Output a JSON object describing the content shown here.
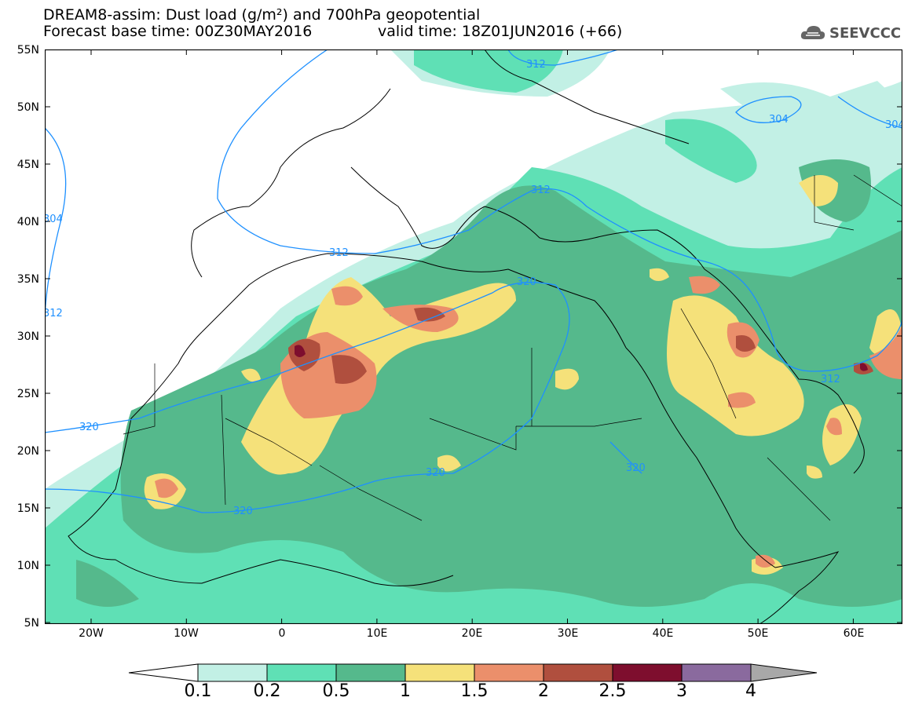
{
  "header": {
    "title_line1": "DREAM8-assim: Dust load (g/m²) and 700hPa geopotential",
    "title_line2": "Forecast base time: 00Z30MAY2016",
    "valid_time": "valid time: 18Z01JUN2016 (+66)"
  },
  "logo": {
    "text": "SEEVCCC",
    "icon": "cloud-logo-icon"
  },
  "map": {
    "lat_labels": [
      "55N",
      "50N",
      "45N",
      "40N",
      "35N",
      "30N",
      "25N",
      "20N",
      "15N",
      "10N",
      "5N"
    ],
    "lon_labels": [
      "20W",
      "10W",
      "0",
      "10E",
      "20E",
      "30E",
      "40E",
      "50E",
      "60E"
    ],
    "contour_labels": [
      "312",
      "304",
      "304",
      "312",
      "312",
      "320",
      "320",
      "320",
      "320",
      "312",
      "320",
      "304",
      "312"
    ],
    "colors": {
      "land_bg": "#ffffff",
      "c01": "#c2f0e5",
      "c02": "#5fe0b5",
      "c05": "#55b98c",
      "c1": "#f5e17a",
      "c15": "#eb8f6b",
      "c2": "#b04f3e",
      "c25": "#7e0e2e",
      "c3": "#8a6a9e",
      "c4": "#a8a8a8",
      "contour": "#1e90ff"
    }
  },
  "colorbar": {
    "labels": [
      "0.1",
      "0.2",
      "0.5",
      "1",
      "1.5",
      "2",
      "2.5",
      "3",
      "4"
    ],
    "colors": [
      "#c2f0e5",
      "#5fe0b5",
      "#55b98c",
      "#f5e17a",
      "#eb8f6b",
      "#b04f3e",
      "#7e0e2e",
      "#8a6a9e"
    ]
  }
}
